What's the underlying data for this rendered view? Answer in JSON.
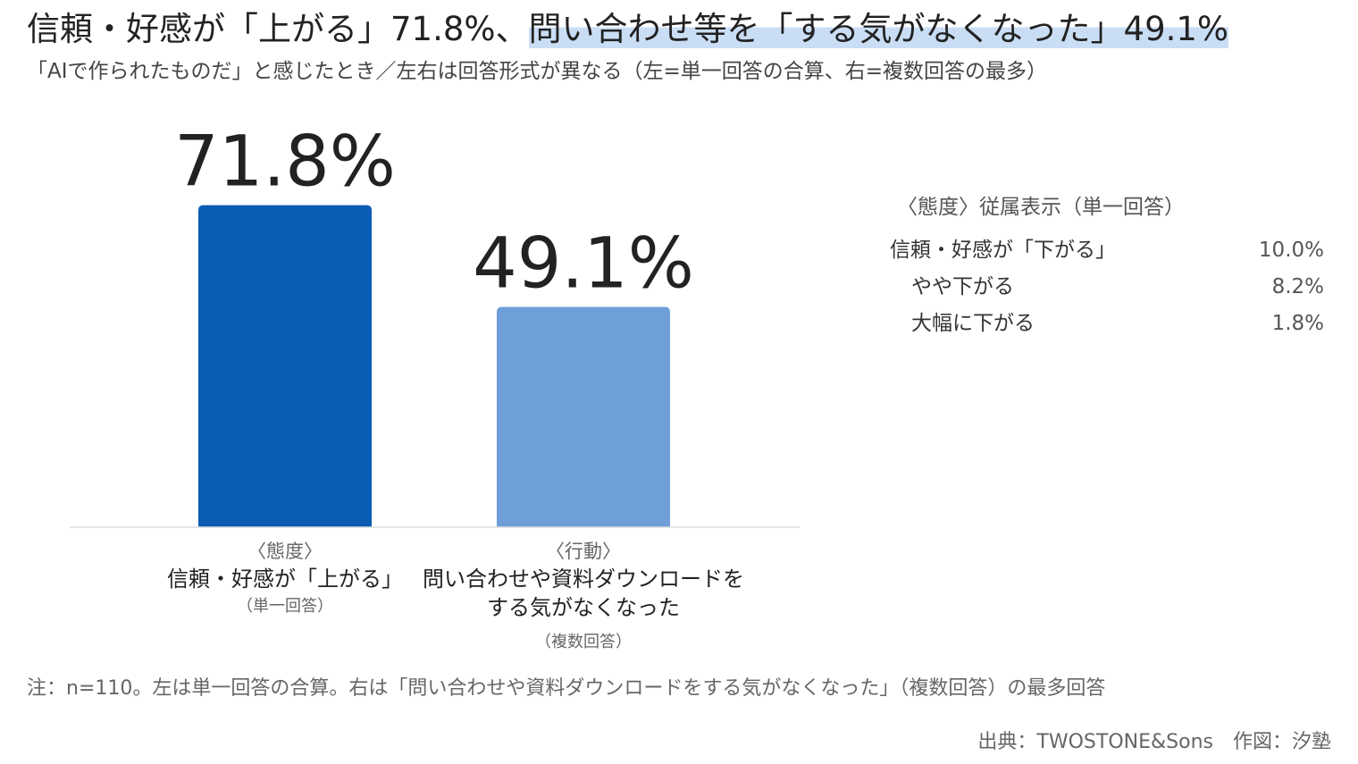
{
  "header": {
    "title_part1": "信頼・好感が「上がる」71.8%、",
    "title_part2": "問い合わせ等を「する気がなくなった」49.1%",
    "subtitle": "「AIで作られたものだ」と感じたとき／左右は回答形式が異なる（左=単一回答の合算、右=複数回答の最多）"
  },
  "chart_data": {
    "type": "bar",
    "categories": [
      {
        "group": "〈態度〉",
        "label_lines": [
          "信頼・好感が「上がる」"
        ],
        "note": "（単一回答）"
      },
      {
        "group": "〈行動〉",
        "label_lines": [
          "問い合わせや資料ダウンロードを",
          "する気がなくなった"
        ],
        "note": "（複数回答）"
      }
    ],
    "values": [
      71.8,
      49.1
    ],
    "value_labels": [
      "71.8%",
      "49.1%"
    ],
    "unit": "%",
    "colors": [
      "#0b5cb5",
      "#6f9fd8"
    ],
    "ylim": [
      0,
      100
    ],
    "grid": false
  },
  "side_panel": {
    "title": "〈態度〉従属表示（単一回答）",
    "rows": [
      {
        "label": "信頼・好感が「下がる」",
        "value": "10.0%",
        "indent": false
      },
      {
        "label": "やや下がる",
        "value": "8.2%",
        "indent": true
      },
      {
        "label": "大幅に下がる",
        "value": "1.8%",
        "indent": true
      }
    ]
  },
  "footer": {
    "note": "注：n=110。左は単一回答の合算。右は「問い合わせや資料ダウンロードをする気がなくなった」（複数回答）の最多回答",
    "source": "出典：TWOSTONE&Sons　作図：汐塾"
  },
  "colors": {
    "highlight": "#c9def5",
    "baseline": "#dddddd"
  }
}
